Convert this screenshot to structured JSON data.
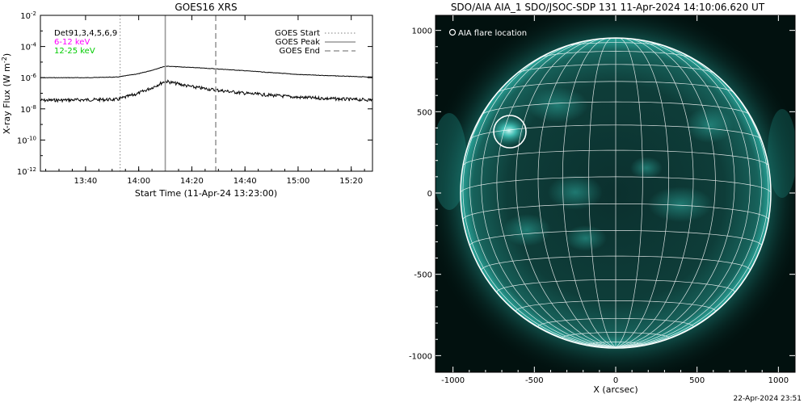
{
  "xrs": {
    "title": "GOES16 XRS",
    "ylabel_main": "X-ray Flux (W m",
    "ylabel_exp": "-2",
    "ylabel_close": ")",
    "xlabel": "Start Time (11-Apr-24 13:23:00)",
    "detector_label": "Det91,3,4,5,6,9",
    "band_low_label": "6-12 keV",
    "band_high_label": "12-25 keV",
    "legend": {
      "start": "GOES Start",
      "peak": "GOES Peak",
      "end": "GOES End"
    },
    "ytick_labels": [
      {
        "base": "10",
        "exp": "-2"
      },
      {
        "base": "10",
        "exp": "-4"
      },
      {
        "base": "10",
        "exp": "-6"
      },
      {
        "base": "10",
        "exp": "-8"
      },
      {
        "base": "10",
        "exp": "-10"
      },
      {
        "base": "10",
        "exp": "-12"
      }
    ],
    "xtick_labels": [
      "13:40",
      "14:00",
      "14:20",
      "14:40",
      "15:00",
      "15:20"
    ],
    "colors": {
      "band_low": "#ff00ff",
      "band_high": "#00cc00",
      "curves": "#000000",
      "markers": "#999999"
    }
  },
  "aia": {
    "title": "SDO/AIA AIA_1 SDO/JSOC-SDP 131 11-Apr-2024 14:10:06.620 UT",
    "flare_legend": "AIA flare location",
    "xlabel": "X (arcsec)",
    "xtick_labels": [
      "-1000",
      "-500",
      "0",
      "500",
      "1000"
    ],
    "ytick_labels": [
      "1000",
      "500",
      "0",
      "-500",
      "-1000"
    ],
    "colors": {
      "background": "#02110f",
      "disk_core": "#0d3a37",
      "limb_glow": "#1f8f86",
      "grid": "#ffffff",
      "active_region": "#4fe0d4"
    }
  },
  "footer_timestamp": "22-Apr-2024 23:51",
  "chart_data": [
    {
      "type": "line",
      "title": "GOES16 XRS",
      "xlabel": "Start Time (11-Apr-24 13:23:00)",
      "ylabel": "X-ray Flux (W m-2)",
      "y_scale": "log",
      "ylim": [
        1e-12,
        0.01
      ],
      "xlim": [
        "13:23",
        "15:28"
      ],
      "x": [
        "13:23",
        "13:40",
        "13:52",
        "14:00",
        "14:05",
        "14:10",
        "14:20",
        "14:28",
        "14:40",
        "15:00",
        "15:20",
        "15:28"
      ],
      "series": [
        {
          "name": "6-12 keV",
          "values": [
            1e-06,
            1e-06,
            1.1e-06,
            1.8e-06,
            3e-06,
            5.5e-06,
            4.5e-06,
            3.8e-06,
            2.8e-06,
            1.6e-06,
            1.2e-06,
            1.1e-06
          ]
        },
        {
          "name": "12-25 keV",
          "values": [
            3.5e-08,
            3.8e-08,
            4e-08,
            1e-07,
            2.3e-07,
            6e-07,
            2.6e-07,
            1.7e-07,
            1e-07,
            5.5e-08,
            4e-08,
            3.8e-08
          ]
        }
      ],
      "markers": {
        "GOES Start": "13:53",
        "GOES Peak": "14:10",
        "GOES End": "14:29"
      },
      "legend_position": "top-right",
      "grid": false
    },
    {
      "type": "image",
      "title": "SDO/AIA AIA_1 SDO/JSOC-SDP 131 11-Apr-2024 14:10:06.620 UT",
      "xlabel": "X (arcsec)",
      "xlim": [
        -1000,
        1000
      ],
      "ylim": [
        -1000,
        1000
      ],
      "grid": true,
      "flare_location_arcsec": [
        -640,
        375
      ]
    }
  ]
}
